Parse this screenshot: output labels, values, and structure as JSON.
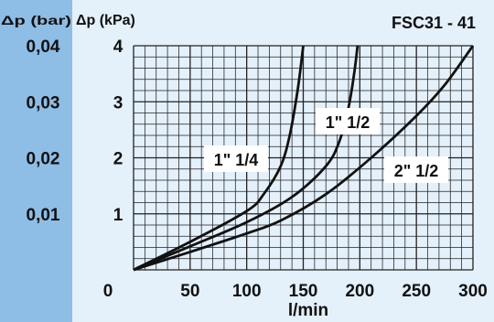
{
  "chart_data": {
    "type": "line",
    "title": "FSC31 - 41",
    "xlabel": "l/min",
    "ylabel": "Δp (kPa)",
    "ylabel_secondary": "Δp (bar)",
    "xlim": [
      0,
      300
    ],
    "ylim": [
      0,
      4
    ],
    "grid": true,
    "x_ticks": [
      "0",
      "50",
      "100",
      "150",
      "200",
      "250",
      "300"
    ],
    "y_ticks": [
      "1",
      "2",
      "3",
      "4"
    ],
    "y_ticks_secondary": [
      "0,01",
      "0,02",
      "0,03",
      "0,04"
    ],
    "series": [
      {
        "name": "1\" 1/4",
        "points": [
          [
            0,
            0
          ],
          [
            50,
            0.5
          ],
          [
            100,
            1.05
          ],
          [
            115,
            1.35
          ],
          [
            130,
            1.85
          ],
          [
            138,
            2.4
          ],
          [
            145,
            3.2
          ],
          [
            150,
            4.0
          ]
        ]
      },
      {
        "name": "1\" 1/2",
        "points": [
          [
            0,
            0
          ],
          [
            50,
            0.42
          ],
          [
            100,
            0.85
          ],
          [
            140,
            1.3
          ],
          [
            170,
            1.85
          ],
          [
            182,
            2.3
          ],
          [
            190,
            2.9
          ],
          [
            195,
            3.5
          ],
          [
            198,
            4.0
          ]
        ]
      },
      {
        "name": "2\" 1/2",
        "points": [
          [
            0,
            0
          ],
          [
            50,
            0.32
          ],
          [
            100,
            0.65
          ],
          [
            130,
            0.88
          ],
          [
            170,
            1.35
          ],
          [
            210,
            2.0
          ],
          [
            250,
            2.75
          ],
          [
            275,
            3.3
          ],
          [
            300,
            4.0
          ]
        ]
      }
    ],
    "colors": {
      "background": "#e4f0fa",
      "left_band": "#8ebde6",
      "grid": "#222222",
      "lines": "#111111"
    }
  }
}
